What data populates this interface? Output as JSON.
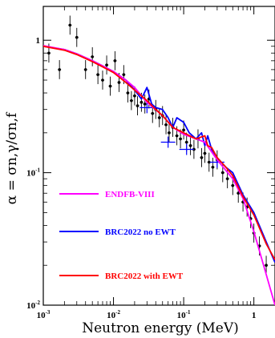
{
  "chart_data": {
    "type": "line",
    "xlabel": "Neutron energy (MeV)",
    "ylabel": "α = σn,γ/σn,f",
    "x_scale": "log",
    "y_scale": "log",
    "xlim": [
      0.001,
      2.0
    ],
    "ylim": [
      0.01,
      1.8
    ],
    "x_ticks": [
      {
        "base": "10",
        "exp": "-3",
        "value": 0.001
      },
      {
        "base": "10",
        "exp": "-2",
        "value": 0.01
      },
      {
        "base": "10",
        "exp": "-1",
        "value": 0.1
      },
      {
        "base": "1",
        "exp": "",
        "value": 1
      }
    ],
    "y_ticks": [
      {
        "base": "1",
        "exp": "",
        "value": 1
      },
      {
        "base": "10",
        "exp": "-1",
        "value": 0.1
      },
      {
        "base": "10",
        "exp": "-2",
        "value": 0.01
      }
    ],
    "legend_position": "left",
    "series": [
      {
        "name": "ENDFB-VIII",
        "color": "#ff00ff",
        "x": [
          0.001,
          0.002,
          0.003,
          0.005,
          0.007,
          0.01,
          0.015,
          0.02,
          0.03,
          0.05,
          0.07,
          0.1,
          0.15,
          0.2,
          0.3,
          0.5,
          0.7,
          1.0,
          1.5,
          2.0
        ],
        "y": [
          0.91,
          0.85,
          0.79,
          0.7,
          0.64,
          0.58,
          0.5,
          0.44,
          0.34,
          0.27,
          0.22,
          0.195,
          0.18,
          0.17,
          0.125,
          0.09,
          0.064,
          0.036,
          0.017,
          0.01
        ]
      },
      {
        "name": "BRC2022 no EWT",
        "color": "#0000ff",
        "x": [
          0.001,
          0.002,
          0.003,
          0.005,
          0.007,
          0.01,
          0.015,
          0.02,
          0.025,
          0.03,
          0.035,
          0.04,
          0.05,
          0.06,
          0.07,
          0.08,
          0.1,
          0.12,
          0.15,
          0.18,
          0.2,
          0.22,
          0.25,
          0.3,
          0.4,
          0.5,
          0.7,
          1.0,
          1.5,
          2.0
        ],
        "y": [
          0.9,
          0.85,
          0.79,
          0.7,
          0.64,
          0.58,
          0.5,
          0.42,
          0.36,
          0.44,
          0.33,
          0.31,
          0.3,
          0.26,
          0.22,
          0.26,
          0.24,
          0.2,
          0.18,
          0.2,
          0.16,
          0.19,
          0.15,
          0.13,
          0.11,
          0.1,
          0.068,
          0.05,
          0.03,
          0.021
        ]
      },
      {
        "name": "BRC2022 with EWT",
        "color": "#ff0000",
        "x": [
          0.001,
          0.002,
          0.003,
          0.005,
          0.007,
          0.01,
          0.015,
          0.02,
          0.03,
          0.04,
          0.05,
          0.07,
          0.1,
          0.15,
          0.2,
          0.22,
          0.25,
          0.3,
          0.4,
          0.5,
          0.7,
          1.0,
          1.5,
          2.0
        ],
        "y": [
          0.9,
          0.84,
          0.78,
          0.69,
          0.63,
          0.57,
          0.48,
          0.42,
          0.35,
          0.3,
          0.27,
          0.22,
          0.2,
          0.18,
          0.19,
          0.16,
          0.155,
          0.13,
          0.11,
          0.095,
          0.066,
          0.048,
          0.029,
          0.022
        ]
      }
    ],
    "experimental_points": {
      "x": [
        0.0012,
        0.0017,
        0.0024,
        0.003,
        0.004,
        0.005,
        0.006,
        0.007,
        0.008,
        0.009,
        0.0105,
        0.012,
        0.014,
        0.016,
        0.018,
        0.02,
        0.022,
        0.025,
        0.028,
        0.032,
        0.036,
        0.04,
        0.045,
        0.05,
        0.056,
        0.062,
        0.07,
        0.08,
        0.09,
        0.1,
        0.11,
        0.125,
        0.14,
        0.16,
        0.18,
        0.2,
        0.23,
        0.26,
        0.3,
        0.36,
        0.42,
        0.5,
        0.6,
        0.7,
        0.8,
        0.9,
        1.0,
        1.2,
        1.5
      ],
      "y": [
        0.8,
        0.6,
        1.3,
        1.05,
        0.6,
        0.75,
        0.55,
        0.5,
        0.65,
        0.45,
        0.7,
        0.48,
        0.55,
        0.4,
        0.35,
        0.38,
        0.32,
        0.34,
        0.33,
        0.36,
        0.28,
        0.3,
        0.26,
        0.27,
        0.23,
        0.2,
        0.22,
        0.19,
        0.18,
        0.21,
        0.17,
        0.16,
        0.15,
        0.18,
        0.13,
        0.14,
        0.12,
        0.11,
        0.125,
        0.1,
        0.09,
        0.08,
        0.07,
        0.06,
        0.055,
        0.045,
        0.035,
        0.028,
        0.02
      ]
    },
    "reference_markers": {
      "x": [
        0.03,
        0.06,
        0.11,
        0.3
      ],
      "y": [
        0.31,
        0.17,
        0.15,
        0.12
      ]
    }
  }
}
